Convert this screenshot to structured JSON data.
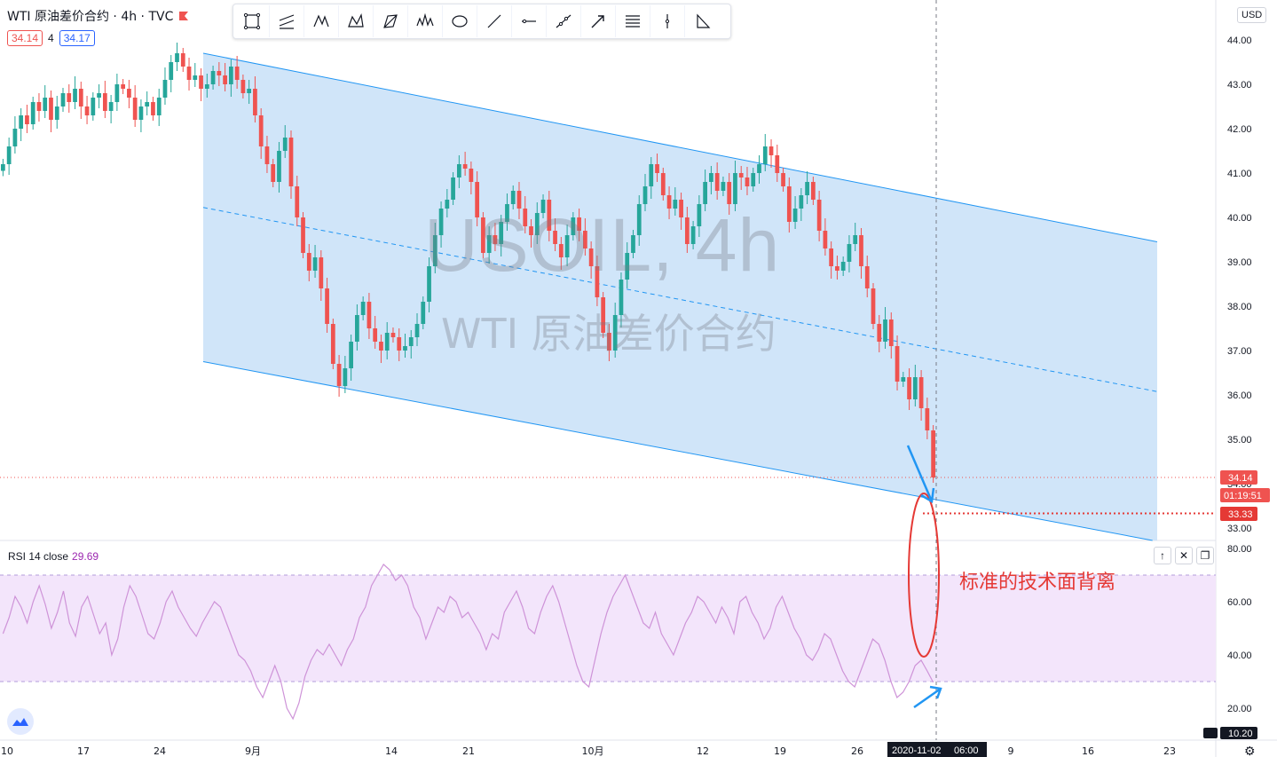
{
  "header": {
    "title": "WTI 原油差价合约 · 4h · TVC",
    "sell_price": "34.14",
    "quantity": "4",
    "buy_price": "34.17",
    "currency": "USD"
  },
  "toolbar": {
    "tools": [
      "rectangle-tool-icon",
      "parallel-channel-tool-icon",
      "xabcd-pattern-tool-icon",
      "abcd-pattern-tool-icon",
      "triangle-pattern-tool-icon",
      "head-shoulders-tool-icon",
      "ellipse-tool-icon",
      "trend-line-tool-icon",
      "horizontal-ray-tool-icon",
      "extended-line-tool-icon",
      "arrow-tool-icon",
      "parallel-lines-tool-icon",
      "vertical-line-tool-icon",
      "triangle-tool-icon"
    ]
  },
  "watermark": {
    "symbol": "USOIL, 4h",
    "name": "WTI 原油差价合约"
  },
  "price_labels": {
    "last_price": "34.14",
    "countdown": "01:19:51",
    "line_level": "33.33",
    "rsi_min": "10.20"
  },
  "rsi": {
    "legend": "RSI 14 close",
    "value": "29.69"
  },
  "annotation": "标准的技术面背离",
  "crosshair": {
    "date": "2020-11-02",
    "time": "06:00"
  },
  "colors": {
    "up": "#26a69a",
    "down": "#ef5350",
    "channel_fill": "#c8e1f8",
    "channel_line": "#2196f3",
    "rsi_line": "#ce93d8",
    "rsi_band": "#f3e5fb",
    "annotation": "#e53935"
  },
  "chart_data": [
    {
      "type": "line",
      "title": "USOIL, 4h",
      "subtitle": "WTI 原油差价合约",
      "x_ticks": [
        "10",
        "17",
        "24",
        "9月",
        "14",
        "21",
        "10月",
        "12",
        "19",
        "26",
        "2020-11-02",
        "9",
        "16",
        "23"
      ],
      "y_ticks": [
        33,
        34,
        35,
        36,
        37,
        38,
        39,
        40,
        41,
        42,
        43,
        44
      ],
      "ylim": [
        32.75,
        44.3
      ],
      "series": [
        {
          "values": [
            41.2,
            41.6,
            42.0,
            42.3,
            42.1,
            42.6,
            42.4,
            42.7,
            42.2,
            42.5,
            42.8,
            42.6,
            42.9,
            42.5,
            42.3,
            42.7,
            42.8,
            42.4,
            42.6,
            43.0,
            42.9,
            42.7,
            42.2,
            42.5,
            42.6,
            42.3,
            42.7,
            43.1,
            43.5,
            43.7,
            43.4,
            43.1,
            43.2,
            42.9,
            43.0,
            43.3,
            43.2,
            43.0,
            43.4,
            43.1,
            42.8,
            42.9,
            42.3,
            41.6,
            41.2,
            40.8,
            41.5,
            41.8,
            40.7,
            40.0,
            39.2,
            38.8,
            39.1,
            38.4,
            37.6,
            36.7,
            36.2,
            36.6,
            37.2,
            37.8,
            38.1,
            37.5,
            37.2,
            37.0,
            37.4,
            37.3,
            37.0,
            37.1,
            37.3,
            37.6,
            38.1,
            38.9,
            39.6,
            40.2,
            40.4,
            40.9,
            41.2,
            41.1,
            40.8,
            40.0,
            39.2,
            39.6,
            39.4,
            39.9,
            40.3,
            40.6,
            40.2,
            39.8,
            39.6,
            40.1,
            40.4,
            39.7,
            39.4,
            39.1,
            39.6,
            40.0,
            39.7,
            39.3,
            38.9,
            38.2,
            37.4,
            37.0,
            37.8,
            38.6,
            39.2,
            39.6,
            40.3,
            40.7,
            41.2,
            41.0,
            40.5,
            40.2,
            40.4,
            40.0,
            39.4,
            39.8,
            40.3,
            40.8,
            41.0,
            40.6,
            40.8,
            40.3,
            41.0,
            40.9,
            40.7,
            41.0,
            41.2,
            41.6,
            41.4,
            41.0,
            40.7,
            39.9,
            40.2,
            40.5,
            40.8,
            40.4,
            39.7,
            39.3,
            38.9,
            38.8,
            39.0,
            39.4,
            39.6,
            38.9,
            38.4,
            37.6,
            37.2,
            37.7,
            37.1,
            36.3,
            36.4,
            35.9,
            36.4,
            35.7,
            35.2,
            34.14
          ]
        }
      ],
      "channel": {
        "upper_start": 43.7,
        "upper_end": 39.45,
        "lower_start": 36.75,
        "lower_end": 32.7
      },
      "horizontal_line": 33.33,
      "last_price": 34.14
    },
    {
      "type": "line",
      "title": "RSI 14 close",
      "y_ticks": [
        20,
        40,
        60,
        80
      ],
      "ylim": [
        10.2,
        83
      ],
      "bands": [
        30,
        70
      ],
      "series": [
        {
          "name": "RSI 14 close",
          "values": [
            48,
            54,
            62,
            58,
            52,
            60,
            66,
            59,
            50,
            56,
            64,
            52,
            47,
            58,
            62,
            55,
            48,
            52,
            40,
            46,
            58,
            66,
            62,
            55,
            48,
            46,
            52,
            60,
            64,
            58,
            54,
            50,
            47,
            52,
            56,
            60,
            58,
            52,
            46,
            40,
            38,
            34,
            28,
            24,
            30,
            36,
            30,
            20,
            16,
            22,
            32,
            38,
            42,
            40,
            44,
            40,
            36,
            42,
            46,
            54,
            58,
            66,
            70,
            74,
            72,
            68,
            70,
            66,
            58,
            54,
            46,
            52,
            58,
            56,
            62,
            60,
            54,
            56,
            52,
            48,
            42,
            48,
            46,
            56,
            60,
            64,
            58,
            50,
            48,
            56,
            62,
            66,
            60,
            52,
            44,
            36,
            30,
            28,
            38,
            48,
            56,
            62,
            66,
            70,
            64,
            58,
            52,
            50,
            56,
            48,
            44,
            40,
            46,
            52,
            56,
            62,
            60,
            56,
            52,
            58,
            54,
            48,
            60,
            62,
            56,
            52,
            46,
            50,
            58,
            62,
            56,
            50,
            46,
            40,
            38,
            42,
            48,
            46,
            40,
            34,
            30,
            28,
            34,
            40,
            46,
            44,
            38,
            30,
            24,
            26,
            30,
            36,
            38,
            34,
            29.69
          ]
        }
      ]
    }
  ]
}
